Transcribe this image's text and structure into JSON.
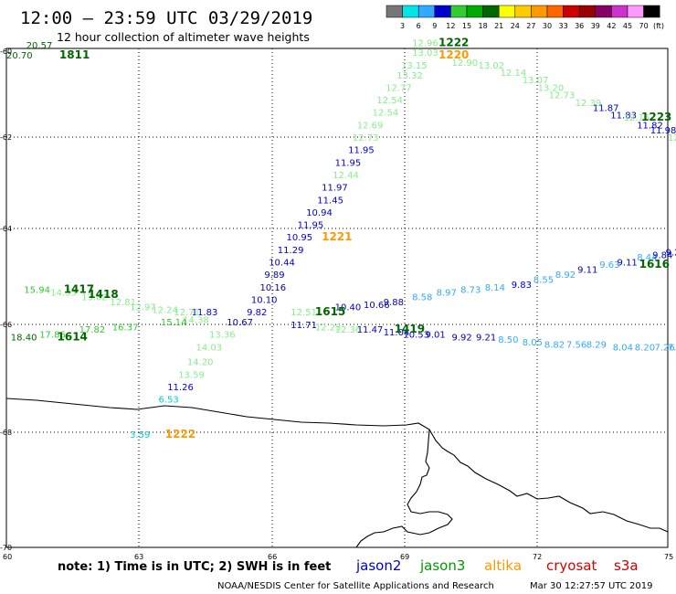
{
  "header": {
    "title": "12:00  –  23:59 UTC 03/29/2019",
    "subtitle": "12 hour collection of altimeter wave heights"
  },
  "color_scale": {
    "labels": [
      "3",
      "6",
      "9",
      "12",
      "15",
      "18",
      "21",
      "24",
      "27",
      "30",
      "33",
      "36",
      "39",
      "42",
      "45",
      "70"
    ],
    "unit": "(ft)",
    "colors": [
      "#777777",
      "#00e5e5",
      "#33aaff",
      "#0000cc",
      "#33cc33",
      "#00aa00",
      "#006600",
      "#ffff00",
      "#ffcc00",
      "#ff9900",
      "#ff6600",
      "#cc0000",
      "#990000",
      "#880066",
      "#cc33cc",
      "#ff99ff",
      "#000000"
    ]
  },
  "axes": {
    "x_ticks": [
      "60",
      "63",
      "66",
      "69",
      "72",
      "75"
    ],
    "y_ticks": [
      "-60",
      "-62",
      "-64",
      "-66",
      "-68",
      "-70"
    ]
  },
  "footer": {
    "note": "note:  1) Time is in UTC;  2) SWH is in feet",
    "satellites": [
      {
        "name": "jason2",
        "color": "#0000cc"
      },
      {
        "name": "jason3",
        "color": "#009900"
      },
      {
        "name": "altika",
        "color": "#ff9900"
      },
      {
        "name": "cryosat",
        "color": "#dd0000"
      },
      {
        "name": "s3a",
        "color": "#cc0000"
      }
    ],
    "credit": "NOAA/NESDIS Center for Satellite Applications and Research",
    "timestamp": "Mar 30 12:27:57 UTC 2019"
  },
  "map_data": {
    "lon_range": [
      60,
      75
    ],
    "lat_range": [
      -70,
      -60
    ],
    "swh_labels": [
      {
        "v": "20.57",
        "lon": 60.45,
        "lat": -60.0,
        "color": "#006600"
      },
      {
        "v": "20.70",
        "lon": 60.0,
        "lat": -60.2,
        "color": "#006600"
      },
      {
        "v": "12.96",
        "lon": 69.2,
        "lat": -59.95,
        "color": "#88ee88"
      },
      {
        "v": "13.03",
        "lon": 69.2,
        "lat": -60.15,
        "color": "#88ee88"
      },
      {
        "v": "13.15",
        "lon": 68.95,
        "lat": -60.4,
        "color": "#88ee88"
      },
      {
        "v": "13.32",
        "lon": 68.85,
        "lat": -60.6,
        "color": "#88ee88"
      },
      {
        "v": "12.77",
        "lon": 68.6,
        "lat": -60.85,
        "color": "#88ee88"
      },
      {
        "v": "12.54",
        "lon": 68.4,
        "lat": -61.1,
        "color": "#88ee88"
      },
      {
        "v": "12.54",
        "lon": 68.3,
        "lat": -61.35,
        "color": "#88ee88"
      },
      {
        "v": "12.69",
        "lon": 67.95,
        "lat": -61.6,
        "color": "#88ee88"
      },
      {
        "v": "12.73",
        "lon": 67.85,
        "lat": -61.85,
        "color": "#88ee88"
      },
      {
        "v": "11.95",
        "lon": 67.75,
        "lat": -62.1,
        "color": "#0000cc"
      },
      {
        "v": "11.95",
        "lon": 67.45,
        "lat": -62.35,
        "color": "#0000cc"
      },
      {
        "v": "12.44",
        "lon": 67.4,
        "lat": -62.6,
        "color": "#88ee88"
      },
      {
        "v": "11.97",
        "lon": 67.15,
        "lat": -62.85,
        "color": "#0000cc"
      },
      {
        "v": "11.45",
        "lon": 67.05,
        "lat": -63.1,
        "color": "#0000cc"
      },
      {
        "v": "10.94",
        "lon": 66.8,
        "lat": -63.35,
        "color": "#0000cc"
      },
      {
        "v": "11.95",
        "lon": 66.6,
        "lat": -63.6,
        "color": "#0000cc"
      },
      {
        "v": "10.95",
        "lon": 66.35,
        "lat": -63.85,
        "color": "#0000cc"
      },
      {
        "v": "11.29",
        "lon": 66.15,
        "lat": -64.1,
        "color": "#0000cc"
      },
      {
        "v": "10.44",
        "lon": 65.95,
        "lat": -64.35,
        "color": "#0000cc"
      },
      {
        "v": "9.89",
        "lon": 65.85,
        "lat": -64.6,
        "color": "#0000cc"
      },
      {
        "v": "10.16",
        "lon": 65.75,
        "lat": -64.85,
        "color": "#0000cc"
      },
      {
        "v": "10.10",
        "lon": 65.55,
        "lat": -65.1,
        "color": "#0000cc"
      },
      {
        "v": "9.82",
        "lon": 65.45,
        "lat": -65.35,
        "color": "#0000cc"
      },
      {
        "v": "10.67",
        "lon": 65.0,
        "lat": -65.55,
        "color": "#0000cc"
      },
      {
        "v": "11.83",
        "lon": 64.2,
        "lat": -65.35,
        "color": "#0000cc"
      },
      {
        "v": "13.36",
        "lon": 64.6,
        "lat": -65.8,
        "color": "#88ee88"
      },
      {
        "v": "14.03",
        "lon": 64.3,
        "lat": -66.05,
        "color": "#88ee88"
      },
      {
        "v": "14.20",
        "lon": 64.1,
        "lat": -66.35,
        "color": "#88ee88"
      },
      {
        "v": "13.59",
        "lon": 63.9,
        "lat": -66.6,
        "color": "#88ee88"
      },
      {
        "v": "11.26",
        "lon": 63.65,
        "lat": -66.85,
        "color": "#0000cc"
      },
      {
        "v": "6.53",
        "lon": 63.45,
        "lat": -67.1,
        "color": "#00cccc"
      },
      {
        "v": "3.59",
        "lon": 62.8,
        "lat": -67.8,
        "color": "#00cccc"
      },
      {
        "v": "12.90",
        "lon": 70.1,
        "lat": -60.35,
        "color": "#88ee88"
      },
      {
        "v": "13.02",
        "lon": 70.7,
        "lat": -60.4,
        "color": "#88ee88"
      },
      {
        "v": "12.14",
        "lon": 71.2,
        "lat": -60.55,
        "color": "#88ee88"
      },
      {
        "v": "13.07",
        "lon": 71.7,
        "lat": -60.7,
        "color": "#88ee88"
      },
      {
        "v": "13.20",
        "lon": 72.05,
        "lat": -60.85,
        "color": "#88ee88"
      },
      {
        "v": "12.73",
        "lon": 72.3,
        "lat": -61.0,
        "color": "#88ee88"
      },
      {
        "v": "12.39",
        "lon": 72.9,
        "lat": -61.15,
        "color": "#88ee88"
      },
      {
        "v": "11.87",
        "lon": 73.3,
        "lat": -61.25,
        "color": "#0000cc"
      },
      {
        "v": "11.83",
        "lon": 73.7,
        "lat": -61.4,
        "color": "#0000cc"
      },
      {
        "v": "12.16",
        "lon": 74.0,
        "lat": -61.45,
        "color": "#88ee88"
      },
      {
        "v": "11.82",
        "lon": 74.3,
        "lat": -61.6,
        "color": "#0000cc"
      },
      {
        "v": "11.98",
        "lon": 74.6,
        "lat": -61.7,
        "color": "#0000cc"
      },
      {
        "v": "12.42",
        "lon": 75.0,
        "lat": -61.85,
        "color": "#88ee88"
      },
      {
        "v": "15.94",
        "lon": 60.4,
        "lat": -64.9,
        "color": "#33cc33"
      },
      {
        "v": "14.35",
        "lon": 61.0,
        "lat": -64.95,
        "color": "#88ee88"
      },
      {
        "v": "13.82",
        "lon": 61.7,
        "lat": -65.05,
        "color": "#88ee88"
      },
      {
        "v": "12.81",
        "lon": 62.35,
        "lat": -65.15,
        "color": "#88ee88"
      },
      {
        "v": "12.97",
        "lon": 62.8,
        "lat": -65.25,
        "color": "#88ee88"
      },
      {
        "v": "12.24",
        "lon": 63.3,
        "lat": -65.3,
        "color": "#88ee88"
      },
      {
        "v": "12.71",
        "lon": 63.8,
        "lat": -65.35,
        "color": "#88ee88"
      },
      {
        "v": "12.51",
        "lon": 66.45,
        "lat": -65.35,
        "color": "#88ee88"
      },
      {
        "v": "11.71",
        "lon": 66.45,
        "lat": -65.6,
        "color": "#0000cc"
      },
      {
        "v": "12.23",
        "lon": 67.0,
        "lat": -65.65,
        "color": "#88ee88"
      },
      {
        "v": "12.36",
        "lon": 67.45,
        "lat": -65.7,
        "color": "#88ee88"
      },
      {
        "v": "10.40",
        "lon": 67.45,
        "lat": -65.25,
        "color": "#0000cc"
      },
      {
        "v": "10.66",
        "lon": 68.1,
        "lat": -65.2,
        "color": "#0000cc"
      },
      {
        "v": "9.88",
        "lon": 68.55,
        "lat": -65.15,
        "color": "#0000cc"
      },
      {
        "v": "8.58",
        "lon": 69.2,
        "lat": -65.05,
        "color": "#33aaff"
      },
      {
        "v": "8.97",
        "lon": 69.75,
        "lat": -64.95,
        "color": "#33aaff"
      },
      {
        "v": "8.73",
        "lon": 70.3,
        "lat": -64.9,
        "color": "#33aaff"
      },
      {
        "v": "8.14",
        "lon": 70.85,
        "lat": -64.85,
        "color": "#33aaff"
      },
      {
        "v": "9.83",
        "lon": 71.45,
        "lat": -64.8,
        "color": "#0000cc"
      },
      {
        "v": "8.55",
        "lon": 71.95,
        "lat": -64.7,
        "color": "#33aaff"
      },
      {
        "v": "8.92",
        "lon": 72.45,
        "lat": -64.6,
        "color": "#33aaff"
      },
      {
        "v": "9.11",
        "lon": 72.95,
        "lat": -64.5,
        "color": "#0000cc"
      },
      {
        "v": "9.63",
        "lon": 73.45,
        "lat": -64.4,
        "color": "#33aaff"
      },
      {
        "v": "9.11",
        "lon": 73.85,
        "lat": -64.35,
        "color": "#0000cc"
      },
      {
        "v": "8.44",
        "lon": 74.3,
        "lat": -64.25,
        "color": "#33aaff"
      },
      {
        "v": "9.84",
        "lon": 74.65,
        "lat": -64.2,
        "color": "#0000cc"
      },
      {
        "v": "9.25",
        "lon": 74.95,
        "lat": -64.15,
        "color": "#0000cc"
      },
      {
        "v": "18.40",
        "lon": 60.1,
        "lat": -65.85,
        "color": "#006600"
      },
      {
        "v": "17.86",
        "lon": 60.75,
        "lat": -65.8,
        "color": "#33cc33"
      },
      {
        "v": "17.82",
        "lon": 61.65,
        "lat": -65.7,
        "color": "#33cc33"
      },
      {
        "v": "16.37",
        "lon": 62.4,
        "lat": -65.65,
        "color": "#33cc33"
      },
      {
        "v": "15.14",
        "lon": 63.5,
        "lat": -65.55,
        "color": "#33cc33"
      },
      {
        "v": "14.38",
        "lon": 64.0,
        "lat": -65.5,
        "color": "#88ee88"
      },
      {
        "v": "11.47",
        "lon": 67.95,
        "lat": -65.7,
        "color": "#0000cc"
      },
      {
        "v": "11.04",
        "lon": 68.55,
        "lat": -65.75,
        "color": "#0000cc"
      },
      {
        "v": "10.53",
        "lon": 69.0,
        "lat": -65.8,
        "color": "#0000cc"
      },
      {
        "v": "9.01",
        "lon": 69.5,
        "lat": -65.8,
        "color": "#0000cc"
      },
      {
        "v": "9.92",
        "lon": 70.1,
        "lat": -65.85,
        "color": "#0000cc"
      },
      {
        "v": "9.21",
        "lon": 70.65,
        "lat": -65.85,
        "color": "#0000cc"
      },
      {
        "v": "8.50",
        "lon": 71.15,
        "lat": -65.9,
        "color": "#33aaff"
      },
      {
        "v": "8.05",
        "lon": 71.7,
        "lat": -65.95,
        "color": "#33aaff"
      },
      {
        "v": "8.82",
        "lon": 72.2,
        "lat": -66.0,
        "color": "#33aaff"
      },
      {
        "v": "7.56",
        "lon": 72.7,
        "lat": -66.0,
        "color": "#33aaff"
      },
      {
        "v": "8.29",
        "lon": 73.15,
        "lat": -66.0,
        "color": "#33aaff"
      },
      {
        "v": "8.04",
        "lon": 73.75,
        "lat": -66.05,
        "color": "#33aaff"
      },
      {
        "v": "8.20",
        "lon": 74.25,
        "lat": -66.05,
        "color": "#33aaff"
      },
      {
        "v": "7.26",
        "lon": 74.7,
        "lat": -66.05,
        "color": "#33aaff"
      },
      {
        "v": "7.7",
        "lon": 75.0,
        "lat": -66.05,
        "color": "#33aaff"
      }
    ],
    "time_labels": [
      {
        "t": "1811",
        "lon": 61.2,
        "lat": -60.2,
        "color": "#006600"
      },
      {
        "t": "1222",
        "lon": 69.8,
        "lat": -59.95,
        "color": "#006600"
      },
      {
        "t": "1220",
        "lon": 69.8,
        "lat": -60.2,
        "color": "#ff9900"
      },
      {
        "t": "1223",
        "lon": 74.4,
        "lat": -61.45,
        "color": "#006600"
      },
      {
        "t": "1221",
        "lon": 67.15,
        "lat": -63.85,
        "color": "#ff9900"
      },
      {
        "t": "1616",
        "lon": 74.35,
        "lat": -64.4,
        "color": "#006600"
      },
      {
        "t": "1417",
        "lon": 61.3,
        "lat": -64.9,
        "color": "#006600"
      },
      {
        "t": "1418",
        "lon": 61.85,
        "lat": -65.0,
        "color": "#006600"
      },
      {
        "t": "1615",
        "lon": 67.0,
        "lat": -65.35,
        "color": "#006600"
      },
      {
        "t": "1419",
        "lon": 68.8,
        "lat": -65.7,
        "color": "#006600"
      },
      {
        "t": "1614",
        "lon": 61.15,
        "lat": -65.85,
        "color": "#006600"
      },
      {
        "t": "1222",
        "lon": 63.6,
        "lat": -67.8,
        "color": "#ff9900"
      }
    ]
  }
}
